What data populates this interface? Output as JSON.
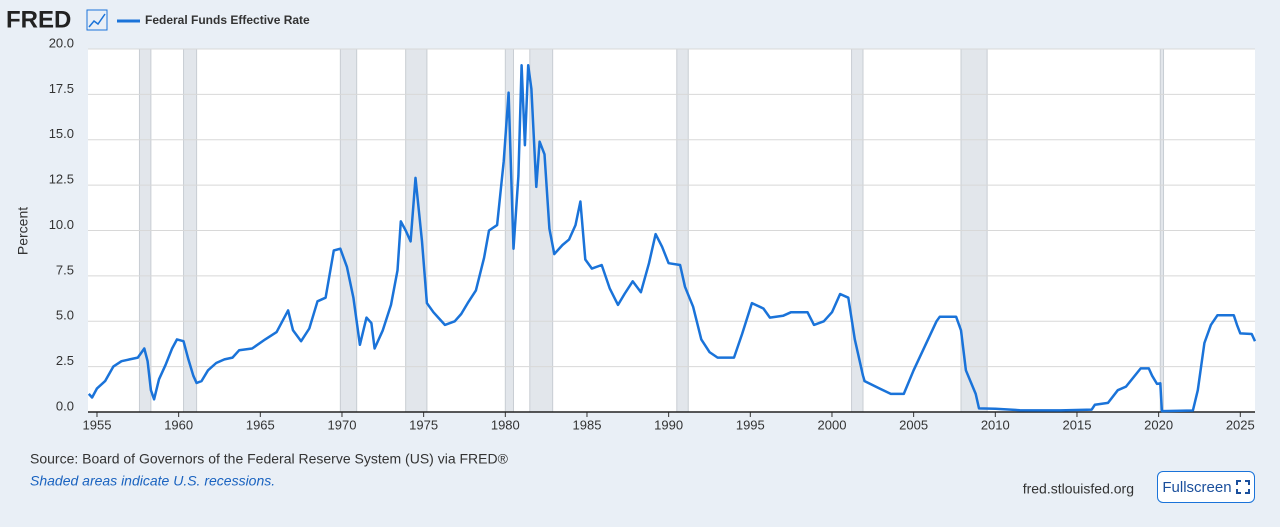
{
  "brand": "FRED",
  "chart_data": {
    "type": "line",
    "ylabel": "Percent",
    "x": [
      1954.5,
      1954.7,
      1955.0,
      1955.5,
      1956.0,
      1956.5,
      1957.0,
      1957.5,
      1957.9,
      1958.1,
      1958.3,
      1958.5,
      1958.8,
      1959.2,
      1959.6,
      1959.9,
      1960.3,
      1960.6,
      1960.9,
      1961.1,
      1961.4,
      1961.8,
      1962.3,
      1962.8,
      1963.3,
      1963.7,
      1964.5,
      1965.3,
      1966.0,
      1966.7,
      1967.0,
      1967.5,
      1968.0,
      1968.5,
      1969.0,
      1969.5,
      1969.9,
      1970.3,
      1970.7,
      1971.1,
      1971.5,
      1971.8,
      1972.0,
      1972.5,
      1973.0,
      1973.4,
      1973.6,
      1973.9,
      1974.2,
      1974.5,
      1974.9,
      1975.2,
      1975.6,
      1975.9,
      1976.3,
      1976.9,
      1977.3,
      1977.7,
      1978.2,
      1978.7,
      1979.0,
      1979.5,
      1979.9,
      1980.2,
      1980.5,
      1980.8,
      1981.0,
      1981.2,
      1981.4,
      1981.6,
      1981.9,
      1982.1,
      1982.4,
      1982.7,
      1983.0,
      1983.5,
      1983.9,
      1984.3,
      1984.6,
      1984.9,
      1985.3,
      1985.9,
      1986.4,
      1986.9,
      1987.3,
      1987.8,
      1988.3,
      1988.8,
      1989.2,
      1989.6,
      1990.0,
      1990.7,
      1991.0,
      1991.5,
      1992.0,
      1992.5,
      1993.0,
      1994.0,
      1994.5,
      1995.1,
      1995.8,
      1996.2,
      1997.0,
      1997.5,
      1998.5,
      1998.9,
      1999.5,
      2000.0,
      2000.5,
      2001.0,
      2001.4,
      2001.9,
      2002.0,
      2002.9,
      2003.6,
      2004.4,
      2005.0,
      2006.4,
      2006.6,
      2007.6,
      2007.9,
      2008.2,
      2008.8,
      2009.0,
      2010.0,
      2011.5,
      2014.0,
      2015.9,
      2016.1,
      2016.9,
      2017.5,
      2018.0,
      2018.9,
      2019.4,
      2019.6,
      2019.9,
      2020.1,
      2020.2,
      2022.1,
      2022.4,
      2022.8,
      2023.2,
      2023.6,
      2024.6,
      2024.8,
      2025.0,
      2025.7,
      2025.9
    ],
    "series": [
      {
        "name": "Federal Funds Effective Rate",
        "color": "#1a73d9",
        "values": [
          1.0,
          0.8,
          1.3,
          1.7,
          2.5,
          2.8,
          2.9,
          3.0,
          3.5,
          2.8,
          1.2,
          0.7,
          1.8,
          2.6,
          3.5,
          4.0,
          3.9,
          2.9,
          2.0,
          1.6,
          1.7,
          2.3,
          2.7,
          2.9,
          3.0,
          3.4,
          3.5,
          4.0,
          4.4,
          5.6,
          4.5,
          3.9,
          4.6,
          6.1,
          6.3,
          8.9,
          9.0,
          8.0,
          6.3,
          3.7,
          5.2,
          4.9,
          3.5,
          4.5,
          5.9,
          7.8,
          10.5,
          10.0,
          9.4,
          12.9,
          9.4,
          6.0,
          5.5,
          5.2,
          4.8,
          5.0,
          5.4,
          6.0,
          6.7,
          8.5,
          10.0,
          10.3,
          13.8,
          17.6,
          9.0,
          13.0,
          19.1,
          14.7,
          19.1,
          17.8,
          12.4,
          14.9,
          14.2,
          10.1,
          8.7,
          9.2,
          9.5,
          10.3,
          11.6,
          8.4,
          7.9,
          8.1,
          6.8,
          5.9,
          6.5,
          7.2,
          6.6,
          8.2,
          9.8,
          9.1,
          8.2,
          8.1,
          6.9,
          5.8,
          4.0,
          3.3,
          3.0,
          3.0,
          4.3,
          6.0,
          5.7,
          5.2,
          5.3,
          5.5,
          5.5,
          4.8,
          5.0,
          5.5,
          6.5,
          6.3,
          4.0,
          2.0,
          1.7,
          1.3,
          1.0,
          1.0,
          2.3,
          5.0,
          5.25,
          5.25,
          4.5,
          2.3,
          1.0,
          0.2,
          0.18,
          0.1,
          0.09,
          0.13,
          0.4,
          0.5,
          1.2,
          1.4,
          2.4,
          2.4,
          2.0,
          1.55,
          1.58,
          0.05,
          0.08,
          1.2,
          3.8,
          4.8,
          5.33,
          5.33,
          4.8,
          4.33,
          4.3,
          3.9
        ]
      }
    ],
    "recessions": [
      [
        1957.6,
        1958.3
      ],
      [
        1960.3,
        1961.1
      ],
      [
        1969.9,
        1970.9
      ],
      [
        1973.9,
        1975.2
      ],
      [
        1980.0,
        1980.5
      ],
      [
        1981.5,
        1982.9
      ],
      [
        1990.5,
        1991.2
      ],
      [
        2001.2,
        2001.9
      ],
      [
        2007.9,
        2009.5
      ],
      [
        2020.1,
        2020.3
      ]
    ],
    "xlim": [
      1954.45,
      2025.9
    ],
    "xticks": [
      1955,
      1960,
      1965,
      1970,
      1975,
      1980,
      1985,
      1990,
      1995,
      2000,
      2005,
      2010,
      2015,
      2020,
      2025
    ],
    "ylim": [
      0,
      20
    ],
    "yticks": [
      {
        "value": 0,
        "label": "0.0"
      },
      2.5,
      {
        "value": 5,
        "label": "5.0"
      },
      7.5,
      {
        "value": 10,
        "label": "10.0"
      },
      12.5,
      {
        "value": 15,
        "label": "15.0"
      },
      17.5,
      {
        "value": 20,
        "label": "20.0"
      }
    ],
    "grid": true
  },
  "footer": {
    "source": "Source: Board of Governors of the Federal Reserve System (US) via FRED®",
    "note": "Shaded areas indicate U.S. recessions.",
    "site": "fred.stlouisfed.org",
    "button": "Fullscreen"
  }
}
